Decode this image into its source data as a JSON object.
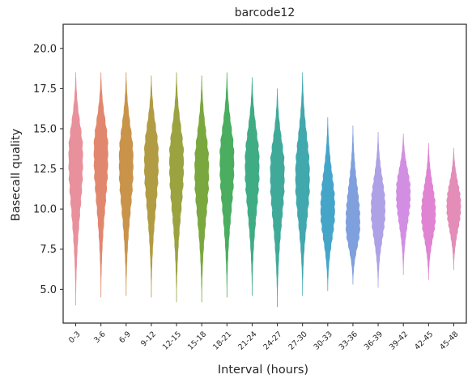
{
  "chart_data": {
    "type": "violin",
    "title": "barcode12",
    "xlabel": "Interval (hours)",
    "ylabel": "Basecall quality",
    "ylim": [
      2.9,
      21.5
    ],
    "yticks": [
      5.0,
      7.5,
      10.0,
      12.5,
      15.0,
      17.5,
      20.0
    ],
    "ytick_labels": [
      "5.0",
      "7.5",
      "10.0",
      "12.5",
      "15.0",
      "17.5",
      "20.0"
    ],
    "grid": false,
    "categories": [
      "0-3",
      "3-6",
      "6-9",
      "9-12",
      "12-15",
      "15-18",
      "18-21",
      "21-24",
      "24-27",
      "27-30",
      "30-33",
      "33-36",
      "36-39",
      "39-42",
      "42-45",
      "45-48"
    ],
    "colors": [
      "#e8909b",
      "#e1876d",
      "#c9934a",
      "#b29c43",
      "#9ba340",
      "#7aa83e",
      "#4aad5f",
      "#3fac85",
      "#3faa9a",
      "#41a8ae",
      "#45a5c9",
      "#7fa0dc",
      "#aea1e5",
      "#d28ee2",
      "#e083d2",
      "#e38db8"
    ],
    "series": [
      {
        "min": 4.0,
        "max": 18.5,
        "median": 13.0,
        "mode": 13.3
      },
      {
        "min": 4.5,
        "max": 18.5,
        "median": 13.0,
        "mode": 13.6
      },
      {
        "min": 4.6,
        "max": 18.5,
        "median": 12.7,
        "mode": 13.0
      },
      {
        "min": 4.5,
        "max": 18.3,
        "median": 12.8,
        "mode": 13.2
      },
      {
        "min": 4.2,
        "max": 18.5,
        "median": 12.8,
        "mode": 13.0
      },
      {
        "min": 4.2,
        "max": 18.3,
        "median": 12.3,
        "mode": 12.5
      },
      {
        "min": 4.5,
        "max": 18.5,
        "median": 12.5,
        "mode": 13.0
      },
      {
        "min": 4.6,
        "max": 18.2,
        "median": 12.3,
        "mode": 12.8
      },
      {
        "min": 3.9,
        "max": 17.5,
        "median": 11.7,
        "mode": 12.3
      },
      {
        "min": 4.6,
        "max": 18.5,
        "median": 11.5,
        "mode": 12.0
      },
      {
        "min": 4.9,
        "max": 15.7,
        "median": 10.3,
        "mode": 10.0
      },
      {
        "min": 5.3,
        "max": 15.2,
        "median": 9.5,
        "mode": 9.0
      },
      {
        "min": 5.1,
        "max": 14.8,
        "median": 10.3,
        "mode": 10.0
      },
      {
        "min": 5.9,
        "max": 14.7,
        "median": 11.0,
        "mode": 11.0
      },
      {
        "min": 5.6,
        "max": 14.1,
        "median": 10.0,
        "mode": 9.7
      },
      {
        "min": 6.2,
        "max": 13.8,
        "median": 9.9,
        "mode": 10.2
      }
    ]
  }
}
